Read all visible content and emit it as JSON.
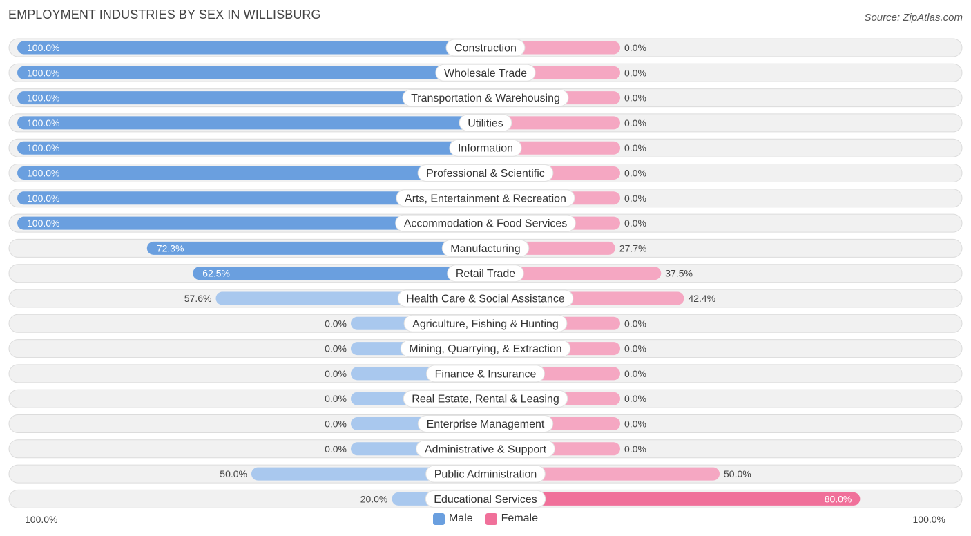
{
  "title": "EMPLOYMENT INDUSTRIES BY SEX IN WILLISBURG",
  "source": "Source: ZipAtlas.com",
  "colors": {
    "male_full": "#6a9fdf",
    "male_light": "#a9c8ee",
    "female_full": "#f0709a",
    "female_light": "#f5a7c2",
    "track": "#f1f1f1",
    "track_border": "#dcdcdc"
  },
  "legend": {
    "male": "Male",
    "female": "Female"
  },
  "axis": {
    "left": "100.0%",
    "right": "100.0%"
  },
  "chart_data": {
    "type": "bar",
    "orientation": "horizontal-diverging",
    "title": "EMPLOYMENT INDUSTRIES BY SEX IN WILLISBURG",
    "xlim": [
      -100,
      100
    ],
    "categories": [
      "Construction",
      "Wholesale Trade",
      "Transportation & Warehousing",
      "Utilities",
      "Information",
      "Professional & Scientific",
      "Arts, Entertainment & Recreation",
      "Accommodation & Food Services",
      "Manufacturing",
      "Retail Trade",
      "Health Care & Social Assistance",
      "Agriculture, Fishing & Hunting",
      "Mining, Quarrying, & Extraction",
      "Finance & Insurance",
      "Real Estate, Rental & Leasing",
      "Enterprise Management",
      "Administrative & Support",
      "Public Administration",
      "Educational Services"
    ],
    "series": [
      {
        "name": "Male",
        "values": [
          100.0,
          100.0,
          100.0,
          100.0,
          100.0,
          100.0,
          100.0,
          100.0,
          72.3,
          62.5,
          57.6,
          0.0,
          0.0,
          0.0,
          0.0,
          0.0,
          0.0,
          50.0,
          20.0
        ]
      },
      {
        "name": "Female",
        "values": [
          0.0,
          0.0,
          0.0,
          0.0,
          0.0,
          0.0,
          0.0,
          0.0,
          27.7,
          37.5,
          42.4,
          0.0,
          0.0,
          0.0,
          0.0,
          0.0,
          0.0,
          50.0,
          80.0
        ]
      }
    ],
    "value_labels": {
      "male": [
        "100.0%",
        "100.0%",
        "100.0%",
        "100.0%",
        "100.0%",
        "100.0%",
        "100.0%",
        "100.0%",
        "72.3%",
        "62.5%",
        "57.6%",
        "0.0%",
        "0.0%",
        "0.0%",
        "0.0%",
        "0.0%",
        "0.0%",
        "50.0%",
        "20.0%"
      ],
      "female": [
        "0.0%",
        "0.0%",
        "0.0%",
        "0.0%",
        "0.0%",
        "0.0%",
        "0.0%",
        "0.0%",
        "27.7%",
        "37.5%",
        "42.4%",
        "0.0%",
        "0.0%",
        "0.0%",
        "0.0%",
        "0.0%",
        "0.0%",
        "50.0%",
        "80.0%"
      ]
    },
    "legend_position": "bottom-center"
  }
}
